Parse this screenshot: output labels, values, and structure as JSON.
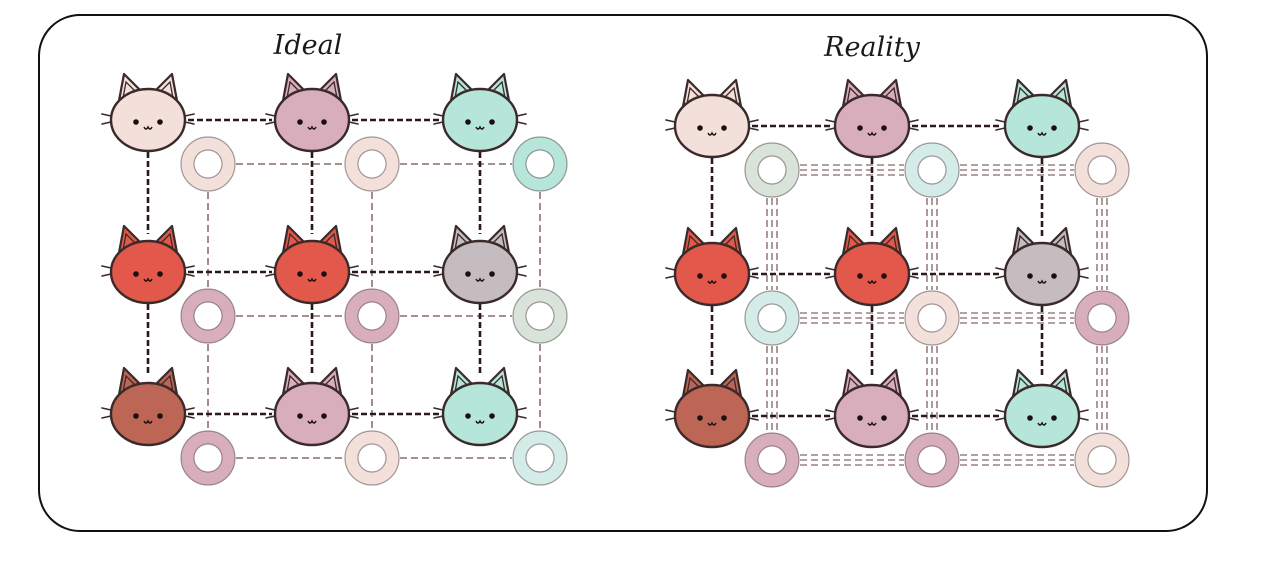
{
  "panels": [
    {
      "title": "Ideal",
      "cat_colors": [
        [
          "#f3e0da",
          "#d9aebc",
          "#b5e6d9"
        ],
        [
          "#e2584a",
          "#e2584a",
          "#c4bcbe"
        ],
        [
          "#bd6656",
          "#d9aebc",
          "#b5e6d9"
        ]
      ],
      "ring_colors": [
        [
          "#f3e0da",
          "#f3e0da",
          "#b5e6d9"
        ],
        [
          "#d9aebc",
          "#d9aebc",
          "#d8e3d9"
        ],
        [
          "#d9aebc",
          "#f3e0da",
          "#d3ece7"
        ]
      ],
      "ring_link_multiplicity": 1
    },
    {
      "title": "Reality",
      "cat_colors": [
        [
          "#f3e0da",
          "#d9aebc",
          "#b5e6d9"
        ],
        [
          "#e2584a",
          "#e2584a",
          "#c4bcbe"
        ],
        [
          "#bd6656",
          "#d9aebc",
          "#b5e6d9"
        ]
      ],
      "ring_colors": [
        [
          "#d8e3d9",
          "#d3ece7",
          "#f3e0da"
        ],
        [
          "#d3ece7",
          "#f3e0da",
          "#d9aebc"
        ],
        [
          "#d9aebc",
          "#d9aebc",
          "#f3e0da"
        ]
      ],
      "ring_link_multiplicity": 3
    }
  ],
  "colors": {
    "outline": "#3a2a2a",
    "cat_link": "#2a1a1a",
    "ring_link": "#9a8080"
  }
}
